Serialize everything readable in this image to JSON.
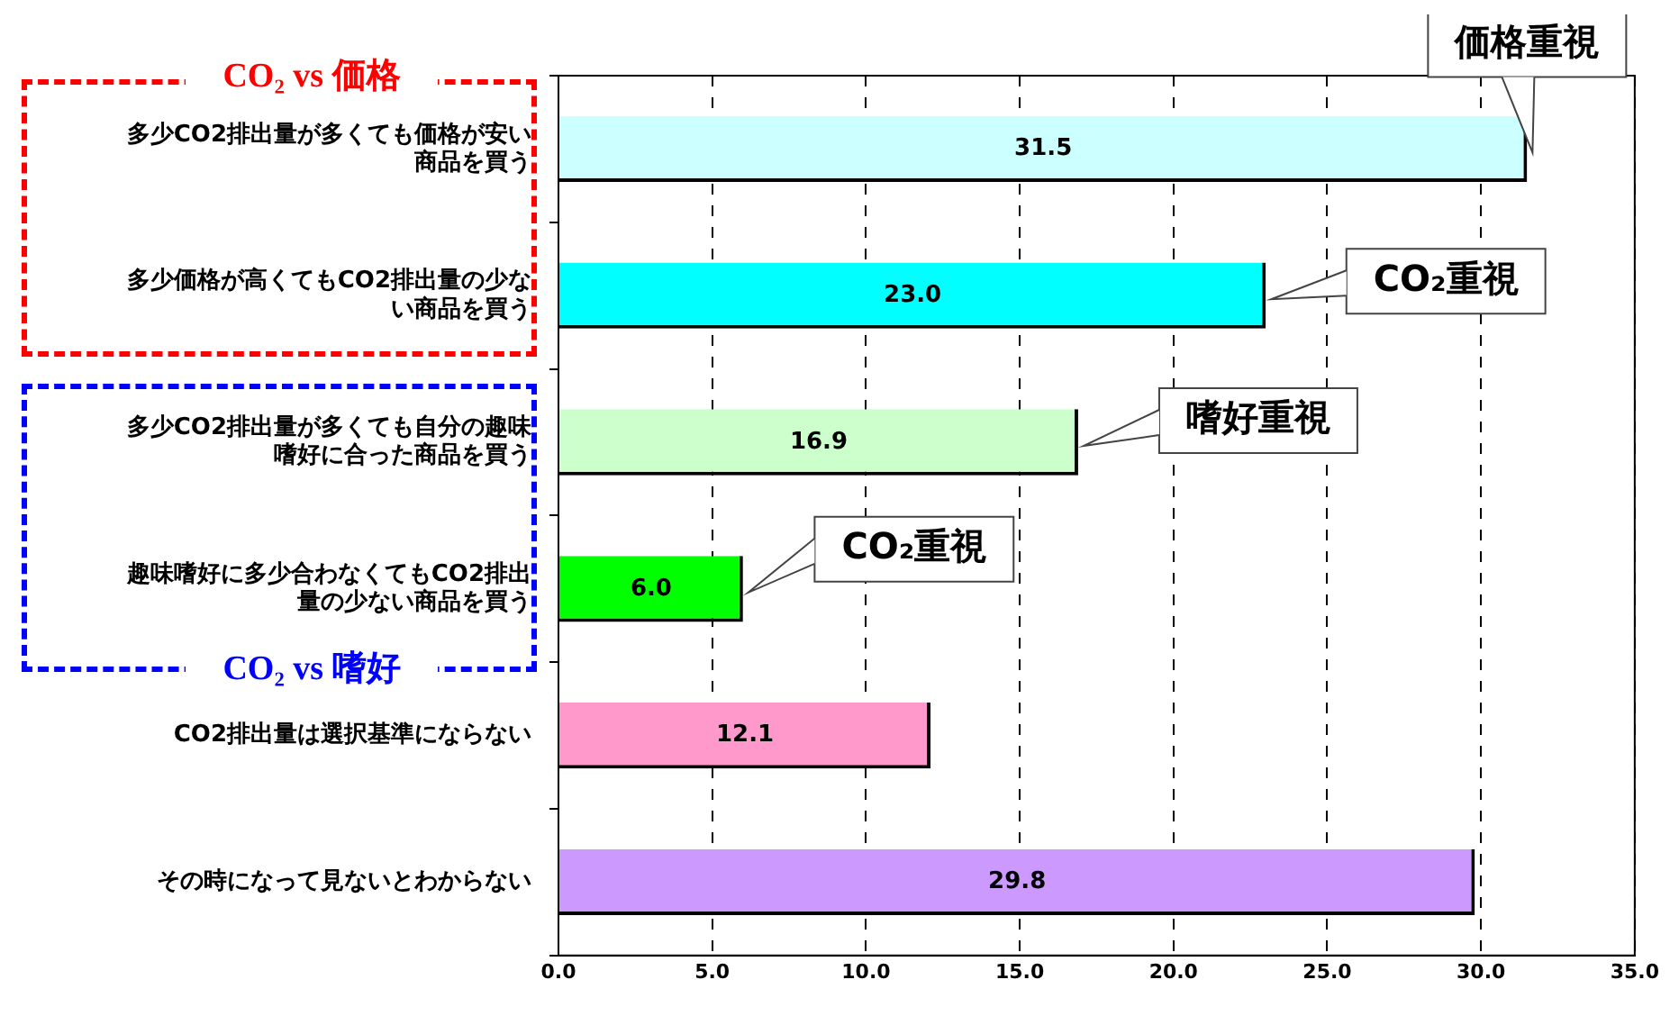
{
  "chart_data": {
    "type": "bar",
    "orientation": "horizontal",
    "categories": [
      "多少CO2排出量が多くても価格が安い商品を買う",
      "多少価格が高くてもCO2排出量の少ない商品を買う",
      "多少CO2排出量が多くても自分の趣味嗜好に合った商品を買う",
      "趣味嗜好に多少合わなくてもCO2排出量の少ない商品を買う",
      "CO2排出量は選択基準にならない",
      "その時になって見ないとわからない"
    ],
    "values": [
      31.5,
      23.0,
      16.9,
      6.0,
      12.1,
      29.8
    ],
    "colors": [
      "#ccffff",
      "#00ffff",
      "#ccffcc",
      "#00ff00",
      "#ff99cc",
      "#cc99ff"
    ],
    "value_labels": [
      "31.5",
      "23.0",
      "16.9",
      "6.0",
      "12.1",
      "29.8"
    ],
    "xlim": [
      0,
      35
    ],
    "xticks": [
      {
        "value": 0,
        "label": "0.0"
      },
      {
        "value": 5,
        "label": "5.0"
      },
      {
        "value": 10,
        "label": "10.0"
      },
      {
        "value": 15,
        "label": "15.0"
      },
      {
        "value": 20,
        "label": "20.0"
      },
      {
        "value": 25,
        "label": "25.0"
      },
      {
        "value": 30,
        "label": "30.0"
      },
      {
        "value": 35,
        "label": "35.0"
      }
    ],
    "grid": "x",
    "legend": false,
    "annotations": [
      "CO₂ vs 価格",
      "CO₂ vs 嗜好",
      {
        "text": "価格重視",
        "x": 31.5,
        "y": "多少CO2排出量が多くても価格が安い商品を買う"
      },
      {
        "text": "CO₂重視",
        "x": 23.0,
        "y": "多少価格が高くてもCO2排出量の少ない商品を買う"
      },
      {
        "text": "嗜好重視",
        "x": 16.9,
        "y": "多少CO2排出量が多くても自分の趣味嗜好に合った商品を買う"
      },
      {
        "text": "CO₂重視",
        "x": 6.0,
        "y": "趣味嗜好に多少合わなくてもCO2排出量の少ない商品を買う"
      }
    ]
  }
}
